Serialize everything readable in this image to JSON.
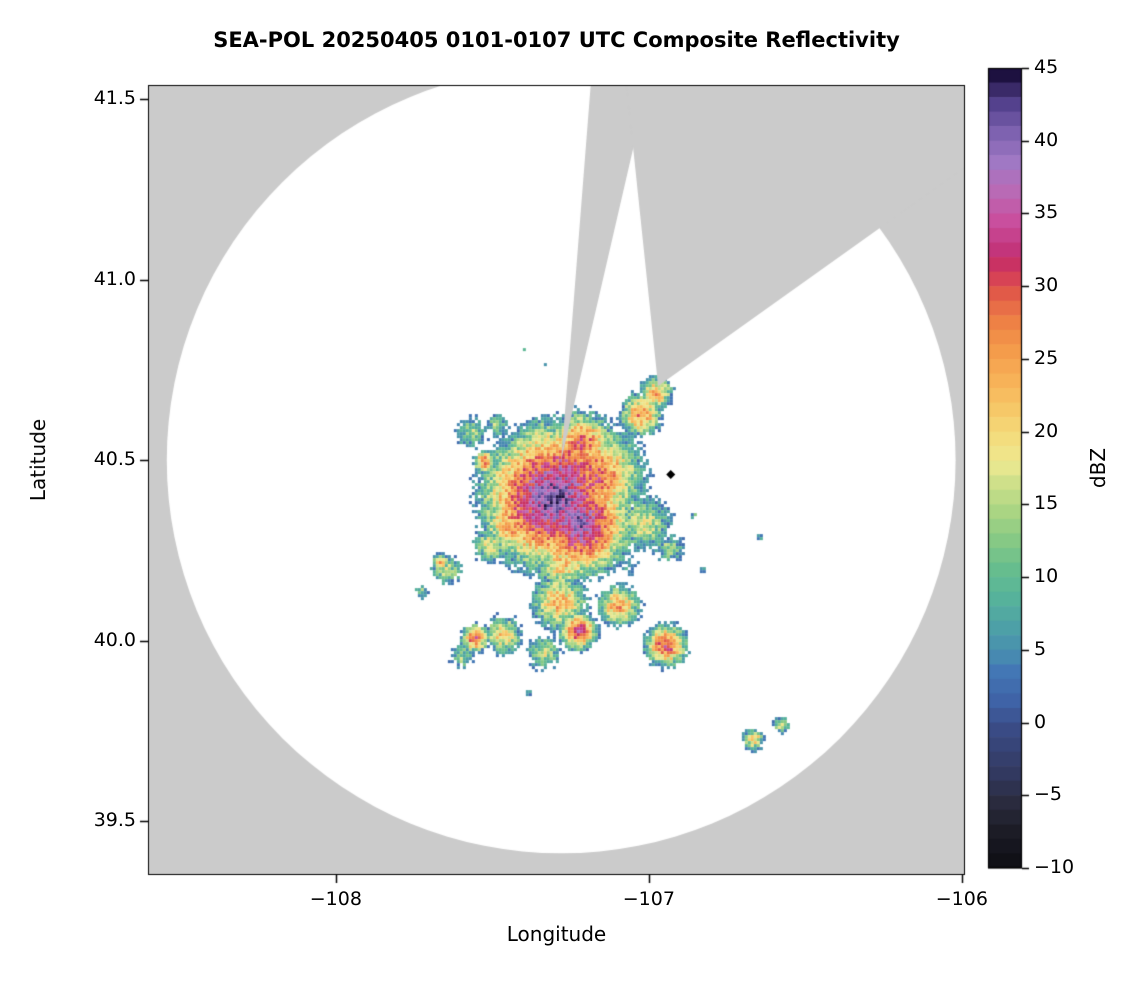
{
  "chart_data": {
    "type": "heatmap",
    "title": "SEA-POL 20250405 0101-0107 UTC Composite Reflectivity",
    "xlabel": "Longitude",
    "ylabel": "Latitude",
    "xlim": [
      -108.6,
      -105.99
    ],
    "ylim": [
      39.35,
      41.54
    ],
    "xticks": [
      -108,
      -107,
      -106
    ],
    "xtick_labels": [
      "−108",
      "−107",
      "−106"
    ],
    "yticks": [
      39.5,
      40.0,
      40.5,
      41.0,
      41.5
    ],
    "ytick_labels": [
      "39.5",
      "40.0",
      "40.5",
      "41.0",
      "41.5"
    ],
    "grid": false,
    "legend": "none",
    "masked_color": "#cbcbcb",
    "coverage": {
      "center_lon": -107.28,
      "center_lat": 40.5,
      "radius_lon_deg": 1.26,
      "radius_lat_deg": 1.09,
      "notch_sector": {
        "az_from_deg": 4.5,
        "az_to_deg": 13.0
      },
      "main_sector": {
        "apex_az_deg": 52.6,
        "apex_radius_frac": 0.31,
        "left_edge_az_deg": -6.0,
        "right_edge_az_deg": 54.5
      }
    },
    "marker": {
      "lon": -106.93,
      "lat": 40.46,
      "shape": "diamond",
      "color": "#000000"
    },
    "colorbar": {
      "label": "dBZ",
      "min": -10,
      "max": 45,
      "ticks": [
        45,
        40,
        35,
        30,
        25,
        20,
        15,
        10,
        5,
        0,
        -5,
        -10
      ],
      "tick_labels": [
        "45",
        "40",
        "35",
        "30",
        "25",
        "20",
        "15",
        "10",
        "5",
        "0",
        "−5",
        "−10"
      ],
      "stops": [
        [
          -10,
          "#0b0b10"
        ],
        [
          -7,
          "#1c1c26"
        ],
        [
          -5,
          "#2a2b3e"
        ],
        [
          -3,
          "#323960"
        ],
        [
          0,
          "#3a4b85"
        ],
        [
          2,
          "#3f63a7"
        ],
        [
          4,
          "#4377b5"
        ],
        [
          5,
          "#4789b1"
        ],
        [
          7,
          "#4da0a7"
        ],
        [
          9,
          "#56b29b"
        ],
        [
          11,
          "#66bd8e"
        ],
        [
          13,
          "#86c985"
        ],
        [
          15,
          "#aad583"
        ],
        [
          17,
          "#cfe08a"
        ],
        [
          18,
          "#e6e78f"
        ],
        [
          19,
          "#f0e489"
        ],
        [
          20,
          "#f3dd7e"
        ],
        [
          22,
          "#f6c868"
        ],
        [
          24,
          "#f7b258"
        ],
        [
          26,
          "#f49c4b"
        ],
        [
          28,
          "#ee8145"
        ],
        [
          30,
          "#e15a48"
        ],
        [
          31,
          "#d74355"
        ],
        [
          32,
          "#c93263"
        ],
        [
          33,
          "#c3357b"
        ],
        [
          35,
          "#c94f9e"
        ],
        [
          37,
          "#b96ab5"
        ],
        [
          39,
          "#a078c4"
        ],
        [
          41,
          "#7e62b0"
        ],
        [
          43,
          "#54418d"
        ],
        [
          44,
          "#3a2a68"
        ],
        [
          45,
          "#1d1140"
        ]
      ]
    },
    "echo_cells_format": [
      "lon",
      "lat",
      "radius_deg",
      "peak_dbz"
    ],
    "echo_cells": [
      [
        -107.31,
        40.4,
        0.13,
        41
      ],
      [
        -107.23,
        40.33,
        0.1,
        39
      ],
      [
        -107.27,
        40.47,
        0.09,
        36
      ],
      [
        -107.18,
        40.46,
        0.11,
        30
      ],
      [
        -107.43,
        40.33,
        0.08,
        27
      ],
      [
        -107.35,
        40.55,
        0.07,
        21
      ],
      [
        -107.22,
        40.55,
        0.07,
        30
      ],
      [
        -107.28,
        40.22,
        0.07,
        23
      ],
      [
        -107.03,
        40.63,
        0.05,
        27
      ],
      [
        -106.98,
        40.69,
        0.04,
        25
      ],
      [
        -107.02,
        40.33,
        0.08,
        18
      ],
      [
        -106.94,
        40.26,
        0.05,
        14
      ],
      [
        -107.08,
        40.22,
        0.07,
        6
      ],
      [
        -107.29,
        40.11,
        0.07,
        24
      ],
      [
        -107.23,
        40.03,
        0.04,
        33
      ],
      [
        -107.34,
        39.97,
        0.05,
        17
      ],
      [
        -107.47,
        40.02,
        0.05,
        22
      ],
      [
        -107.56,
        40.01,
        0.03,
        31
      ],
      [
        -107.6,
        39.96,
        0.04,
        14
      ],
      [
        -107.1,
        40.1,
        0.05,
        26
      ],
      [
        -106.95,
        39.99,
        0.045,
        32
      ],
      [
        -107.57,
        40.58,
        0.05,
        15
      ],
      [
        -107.49,
        40.6,
        0.04,
        13
      ],
      [
        -107.53,
        40.5,
        0.025,
        29
      ],
      [
        -107.65,
        40.2,
        0.05,
        16
      ],
      [
        -107.67,
        40.22,
        0.02,
        26
      ],
      [
        -107.73,
        40.14,
        0.025,
        12
      ],
      [
        -107.51,
        40.27,
        0.05,
        19
      ],
      [
        -107.44,
        40.45,
        0.05,
        24
      ],
      [
        -106.65,
        40.29,
        0.015,
        10
      ],
      [
        -106.83,
        40.2,
        0.015,
        12
      ],
      [
        -107.39,
        39.86,
        0.013,
        10
      ],
      [
        -106.67,
        39.73,
        0.03,
        22
      ],
      [
        -106.58,
        39.77,
        0.022,
        20
      ],
      [
        -107.4,
        40.81,
        0.013,
        9
      ],
      [
        -107.34,
        40.77,
        0.011,
        7
      ],
      [
        -106.86,
        40.35,
        0.018,
        10
      ],
      [
        -107.3,
        40.63,
        0.02,
        6
      ],
      [
        -107.47,
        40.57,
        0.015,
        5
      ]
    ]
  }
}
